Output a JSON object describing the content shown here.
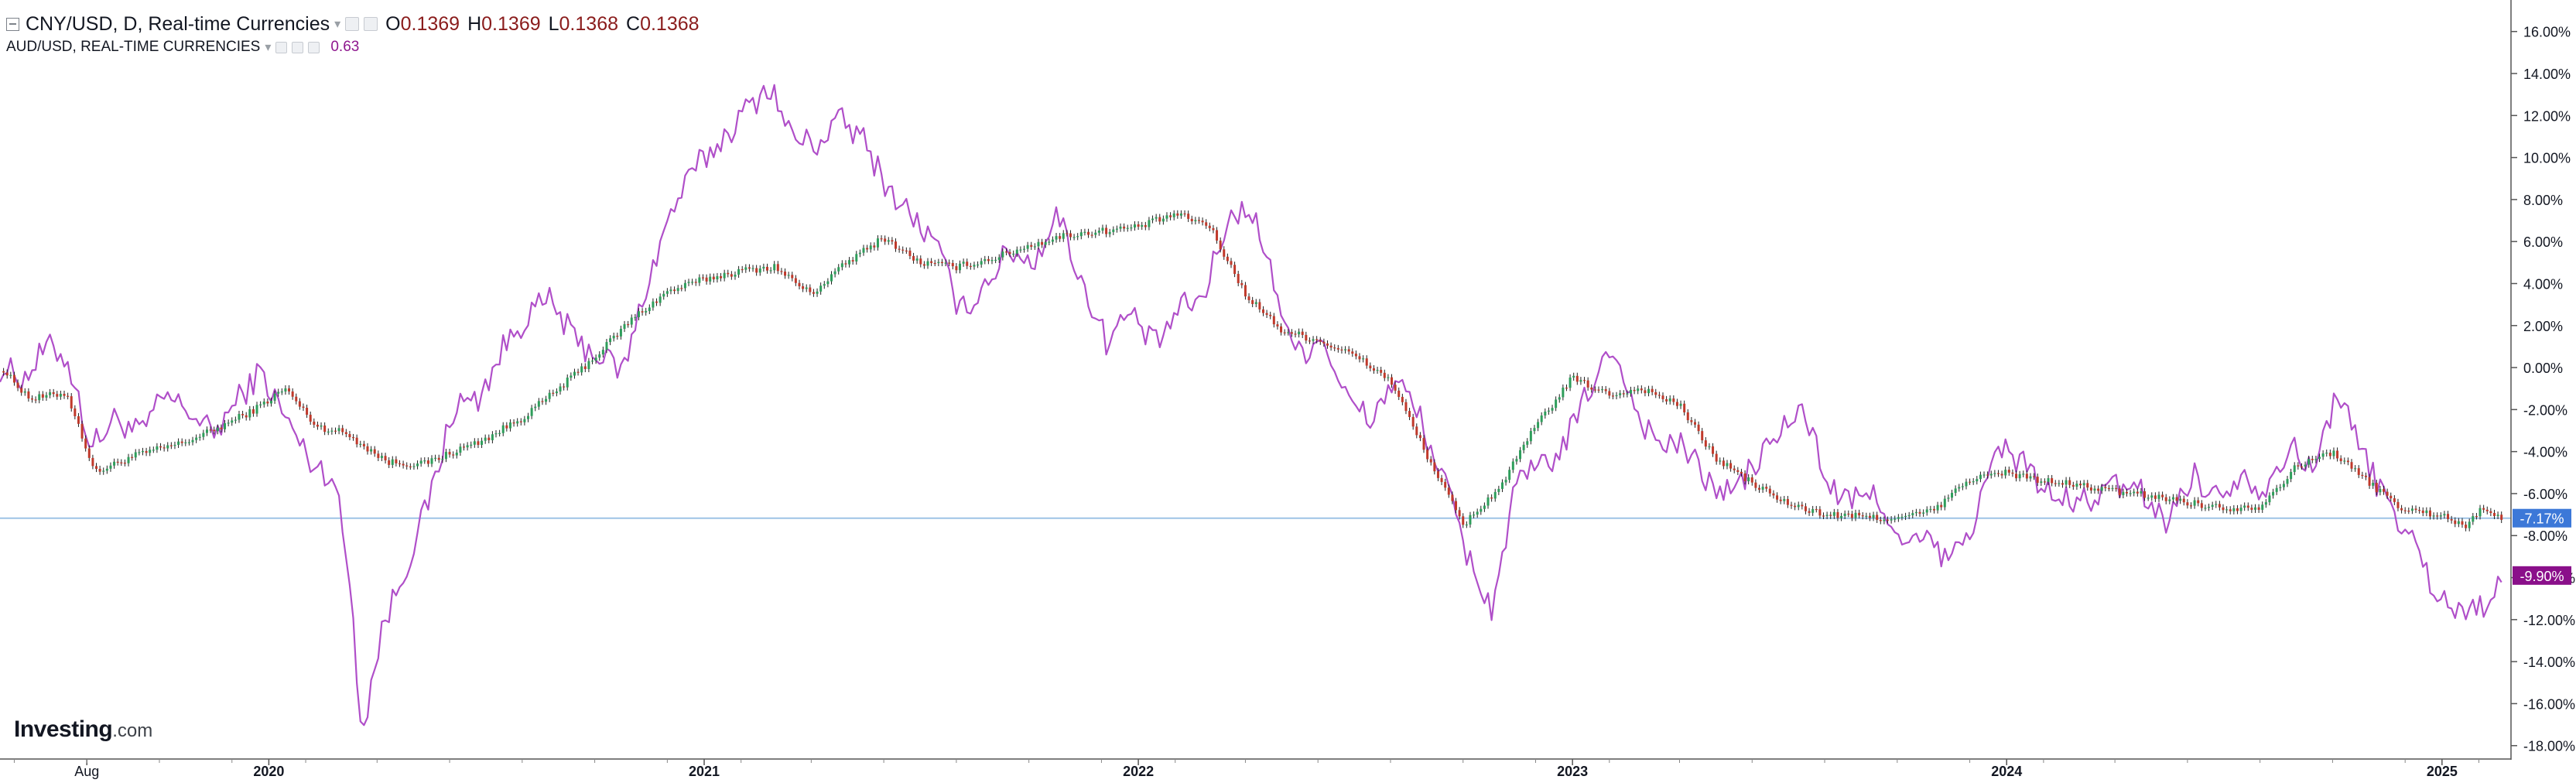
{
  "header": {
    "main_symbol": "CNY/USD, D, Real-time Currencies",
    "ohlc": [
      {
        "label": "O",
        "value": "0.1369"
      },
      {
        "label": "H",
        "value": "0.1369"
      },
      {
        "label": "L",
        "value": "0.1368"
      },
      {
        "label": "C",
        "value": "0.1368"
      }
    ],
    "compare_symbol": "AUD/USD, REAL-TIME CURRENCIES",
    "compare_value": "0.63"
  },
  "logo": {
    "brand": "Investing",
    "suffix": ".com"
  },
  "colors": {
    "aud_line": "#b04fc9",
    "up_candle": "#2e9e5b",
    "down_candle": "#c0392b",
    "cny_tag": "#3c78d8",
    "aud_tag": "#8a0f8a",
    "grid": "#e8e8e8"
  },
  "chart_data": {
    "type": "line",
    "y_unit": "% change",
    "ylim": [
      -18,
      16
    ],
    "y_ticks": [
      "16.00%",
      "14.00%",
      "12.00%",
      "10.00%",
      "8.00%",
      "6.00%",
      "4.00%",
      "2.00%",
      "0.00%",
      "-2.00%",
      "-4.00%",
      "-6.00%",
      "-8.00%",
      "-10.00%",
      "-12.00%",
      "-14.00%",
      "-16.00%",
      "-18.00%"
    ],
    "y_tick_values": [
      16,
      14,
      12,
      10,
      8,
      6,
      4,
      2,
      0,
      -2,
      -4,
      -6,
      -8,
      -10,
      -12,
      -14,
      -16,
      -18
    ],
    "x_labels": [
      "Aug",
      "2020",
      "2021",
      "2022",
      "2023",
      "2024",
      "2025"
    ],
    "x_label_dates": [
      "2019-08-01",
      "2020-01-01",
      "2021-01-01",
      "2022-01-01",
      "2023-01-01",
      "2024-01-01",
      "2025-01-01"
    ],
    "x_range": [
      "2019-05-20",
      "2025-02-28"
    ],
    "reference_line": -7.17,
    "current_labels": [
      {
        "series": "CNY/USD",
        "text": "-7.17%",
        "value": -7.17
      },
      {
        "series": "AUD/USD",
        "text": "-9.90%",
        "value": -9.9
      }
    ],
    "series": [
      {
        "name": "CNY/USD",
        "style": "candlestick",
        "x": [
          "2019-05-20",
          "2019-06-15",
          "2019-07-15",
          "2019-08-08",
          "2019-09-10",
          "2019-10-20",
          "2019-11-15",
          "2019-12-20",
          "2020-01-15",
          "2020-02-10",
          "2020-03-05",
          "2020-04-10",
          "2020-05-10",
          "2020-06-05",
          "2020-07-01",
          "2020-08-01",
          "2020-09-01",
          "2020-10-01",
          "2020-11-01",
          "2020-12-01",
          "2021-01-01",
          "2021-02-01",
          "2021-03-01",
          "2021-04-01",
          "2021-05-01",
          "2021-06-01",
          "2021-07-01",
          "2021-08-01",
          "2021-09-01",
          "2021-10-01",
          "2021-11-01",
          "2021-12-01",
          "2022-01-01",
          "2022-02-01",
          "2022-03-01",
          "2022-04-01",
          "2022-05-01",
          "2022-06-01",
          "2022-07-01",
          "2022-08-01",
          "2022-09-01",
          "2022-10-01",
          "2022-11-01",
          "2022-12-01",
          "2023-01-01",
          "2023-02-01",
          "2023-03-01",
          "2023-04-01",
          "2023-05-01",
          "2023-06-01",
          "2023-07-01",
          "2023-08-01",
          "2023-09-01",
          "2023-10-01",
          "2023-11-01",
          "2023-12-01",
          "2024-01-01",
          "2024-02-01",
          "2024-03-01",
          "2024-04-01",
          "2024-05-01",
          "2024-06-01",
          "2024-07-01",
          "2024-08-01",
          "2024-09-01",
          "2024-10-01",
          "2024-11-01",
          "2024-12-01",
          "2025-01-01",
          "2025-01-20",
          "2025-02-05",
          "2025-02-20"
        ],
        "y": [
          0.0,
          -1.5,
          -1.2,
          -5.0,
          -4.2,
          -3.6,
          -3.0,
          -2.0,
          -1.0,
          -2.8,
          -3.1,
          -4.5,
          -4.6,
          -4.0,
          -3.4,
          -2.4,
          -1.0,
          0.5,
          2.3,
          3.6,
          4.2,
          4.6,
          4.8,
          3.5,
          5.0,
          6.2,
          5.0,
          4.8,
          5.2,
          5.8,
          6.3,
          6.5,
          6.7,
          7.3,
          6.8,
          3.5,
          1.8,
          1.3,
          0.6,
          -0.6,
          -4.2,
          -7.5,
          -5.7,
          -2.8,
          -0.5,
          -1.3,
          -1.0,
          -1.8,
          -4.3,
          -5.5,
          -6.5,
          -7.0,
          -7.1,
          -7.2,
          -6.8,
          -5.3,
          -5.0,
          -5.4,
          -5.6,
          -5.9,
          -6.1,
          -6.4,
          -6.7,
          -6.6,
          -4.7,
          -4.0,
          -5.5,
          -6.8,
          -7.0,
          -7.6,
          -6.6,
          -7.17
        ]
      },
      {
        "name": "AUD/USD",
        "style": "line",
        "x": [
          "2019-05-20",
          "2019-06-10",
          "2019-06-28",
          "2019-07-15",
          "2019-08-05",
          "2019-08-25",
          "2019-09-15",
          "2019-10-05",
          "2019-10-25",
          "2019-11-15",
          "2019-12-05",
          "2019-12-25",
          "2020-01-15",
          "2020-02-05",
          "2020-02-25",
          "2020-03-10",
          "2020-03-19",
          "2020-04-05",
          "2020-04-25",
          "2020-05-15",
          "2020-06-05",
          "2020-06-25",
          "2020-07-15",
          "2020-08-05",
          "2020-08-25",
          "2020-09-15",
          "2020-10-05",
          "2020-10-25",
          "2020-11-15",
          "2020-12-05",
          "2020-12-25",
          "2021-01-15",
          "2021-02-05",
          "2021-02-25",
          "2021-03-15",
          "2021-04-05",
          "2021-04-25",
          "2021-05-15",
          "2021-06-05",
          "2021-06-25",
          "2021-07-15",
          "2021-08-05",
          "2021-08-25",
          "2021-09-15",
          "2021-10-05",
          "2021-10-25",
          "2021-11-15",
          "2021-12-05",
          "2021-12-25",
          "2022-01-15",
          "2022-02-05",
          "2022-02-25",
          "2022-03-15",
          "2022-04-05",
          "2022-04-25",
          "2022-05-15",
          "2022-06-05",
          "2022-06-25",
          "2022-07-15",
          "2022-08-05",
          "2022-08-25",
          "2022-09-15",
          "2022-10-05",
          "2022-10-25",
          "2022-11-15",
          "2022-12-05",
          "2022-12-25",
          "2023-01-15",
          "2023-02-05",
          "2023-02-25",
          "2023-03-15",
          "2023-04-05",
          "2023-04-25",
          "2023-05-15",
          "2023-06-05",
          "2023-06-25",
          "2023-07-15",
          "2023-08-05",
          "2023-08-25",
          "2023-09-15",
          "2023-10-05",
          "2023-10-25",
          "2023-11-15",
          "2023-12-05",
          "2023-12-25",
          "2024-01-15",
          "2024-02-05",
          "2024-02-25",
          "2024-03-15",
          "2024-04-05",
          "2024-04-25",
          "2024-05-15",
          "2024-06-05",
          "2024-06-25",
          "2024-07-15",
          "2024-08-05",
          "2024-08-25",
          "2024-09-15",
          "2024-10-05",
          "2024-10-25",
          "2024-11-15",
          "2024-12-05",
          "2024-12-25",
          "2025-01-15",
          "2025-02-05",
          "2025-02-20"
        ],
        "y": [
          0.0,
          -0.5,
          1.0,
          0.5,
          -3.8,
          -2.4,
          -3.2,
          -1.4,
          -2.0,
          -3.2,
          -1.6,
          -0.2,
          -2.4,
          -4.5,
          -5.2,
          -10.5,
          -17.5,
          -12.5,
          -9.5,
          -6.3,
          -1.8,
          -1.5,
          0.8,
          2.5,
          3.2,
          1.2,
          0.6,
          -0.2,
          4.2,
          7.5,
          9.5,
          10.8,
          12.2,
          13.5,
          11.0,
          10.6,
          11.8,
          10.8,
          8.5,
          7.2,
          5.8,
          2.6,
          4.0,
          5.6,
          5.0,
          7.4,
          4.0,
          1.3,
          2.6,
          1.0,
          2.8,
          3.3,
          6.8,
          7.8,
          4.0,
          0.6,
          1.5,
          -1.5,
          -2.5,
          -0.5,
          -2.3,
          -5.4,
          -9.0,
          -11.5,
          -5.5,
          -4.8,
          -3.8,
          -1.0,
          1.0,
          -2.3,
          -3.6,
          -3.8,
          -5.5,
          -6.0,
          -4.5,
          -3.0,
          -2.0,
          -5.8,
          -6.4,
          -6.0,
          -8.6,
          -8.2,
          -9.3,
          -7.2,
          -3.8,
          -4.5,
          -6.0,
          -6.5,
          -6.2,
          -5.6,
          -6.0,
          -7.4,
          -5.0,
          -6.2,
          -5.0,
          -5.8,
          -3.7,
          -5.0,
          -1.0,
          -4.0,
          -6.3,
          -8.0,
          -10.5,
          -11.7,
          -11.2,
          -9.9
        ]
      }
    ]
  }
}
